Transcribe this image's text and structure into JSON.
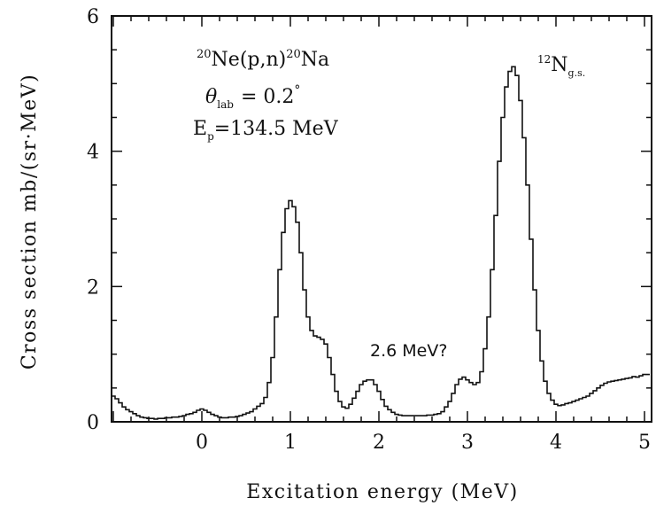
{
  "chart_data": {
    "type": "line",
    "step": true,
    "xlabel": "Excitation energy (MeV)",
    "ylabel": "Cross section mb/(sr·MeV)",
    "xlim": [
      -1.02,
      5.08
    ],
    "ylim": [
      0,
      6
    ],
    "xticks": [
      "0",
      "1",
      "2",
      "3",
      "4",
      "5"
    ],
    "yticks": [
      "0",
      "2",
      "4",
      "6"
    ],
    "xtick_values": [
      0,
      1,
      2,
      3,
      4,
      5
    ],
    "ytick_values": [
      0,
      2,
      4,
      6
    ],
    "grid": false,
    "annotations": {
      "reaction_sup_a": "20",
      "reaction_a": "Ne(p,n)",
      "reaction_sup_b": "20",
      "reaction_b": "Na",
      "theta": "θ",
      "theta_sub": "lab",
      "theta_val": "= 0.2",
      "theta_deg": "°",
      "ep": "E",
      "ep_sub": "p",
      "ep_val": "=134.5  MeV",
      "peak_label": "2.6  MeV?",
      "gs_sup": "12",
      "gs": "N",
      "gs_sub": "g.s."
    },
    "x": [
      -1.0,
      -0.96,
      -0.92,
      -0.88,
      -0.84,
      -0.8,
      -0.76,
      -0.72,
      -0.68,
      -0.64,
      -0.6,
      -0.56,
      -0.52,
      -0.48,
      -0.44,
      -0.4,
      -0.36,
      -0.32,
      -0.28,
      -0.24,
      -0.2,
      -0.16,
      -0.12,
      -0.08,
      -0.04,
      0.0,
      0.04,
      0.08,
      0.12,
      0.16,
      0.2,
      0.24,
      0.28,
      0.32,
      0.36,
      0.4,
      0.44,
      0.48,
      0.52,
      0.56,
      0.6,
      0.64,
      0.68,
      0.72,
      0.76,
      0.8,
      0.84,
      0.88,
      0.92,
      0.96,
      1.0,
      1.04,
      1.08,
      1.12,
      1.16,
      1.2,
      1.24,
      1.28,
      1.32,
      1.36,
      1.4,
      1.44,
      1.48,
      1.52,
      1.56,
      1.6,
      1.64,
      1.68,
      1.72,
      1.76,
      1.8,
      1.84,
      1.88,
      1.92,
      1.96,
      2.0,
      2.04,
      2.08,
      2.12,
      2.16,
      2.2,
      2.24,
      2.28,
      2.32,
      2.36,
      2.4,
      2.44,
      2.48,
      2.52,
      2.56,
      2.6,
      2.64,
      2.68,
      2.72,
      2.76,
      2.8,
      2.84,
      2.88,
      2.92,
      2.96,
      3.0,
      3.04,
      3.08,
      3.12,
      3.16,
      3.2,
      3.24,
      3.28,
      3.32,
      3.36,
      3.4,
      3.44,
      3.48,
      3.52,
      3.56,
      3.6,
      3.64,
      3.68,
      3.72,
      3.76,
      3.8,
      3.84,
      3.88,
      3.92,
      3.96,
      4.0,
      4.04,
      4.08,
      4.12,
      4.16,
      4.2,
      4.24,
      4.28,
      4.32,
      4.36,
      4.4,
      4.44,
      4.48,
      4.52,
      4.56,
      4.6,
      4.64,
      4.68,
      4.72,
      4.76,
      4.8,
      4.84,
      4.88,
      4.92,
      4.96,
      5.0,
      5.04
    ],
    "y": [
      0.38,
      0.34,
      0.28,
      0.22,
      0.18,
      0.15,
      0.12,
      0.09,
      0.07,
      0.06,
      0.05,
      0.05,
      0.04,
      0.05,
      0.05,
      0.06,
      0.06,
      0.07,
      0.07,
      0.08,
      0.09,
      0.11,
      0.12,
      0.14,
      0.17,
      0.19,
      0.17,
      0.14,
      0.11,
      0.09,
      0.07,
      0.06,
      0.06,
      0.07,
      0.07,
      0.08,
      0.09,
      0.11,
      0.13,
      0.15,
      0.19,
      0.23,
      0.27,
      0.36,
      0.58,
      0.95,
      1.55,
      2.25,
      2.8,
      3.15,
      3.27,
      3.18,
      2.95,
      2.5,
      1.95,
      1.55,
      1.35,
      1.27,
      1.25,
      1.22,
      1.15,
      0.95,
      0.7,
      0.45,
      0.3,
      0.22,
      0.2,
      0.26,
      0.35,
      0.45,
      0.55,
      0.6,
      0.62,
      0.62,
      0.55,
      0.45,
      0.33,
      0.23,
      0.18,
      0.14,
      0.11,
      0.1,
      0.09,
      0.09,
      0.09,
      0.09,
      0.09,
      0.09,
      0.09,
      0.1,
      0.1,
      0.11,
      0.12,
      0.15,
      0.22,
      0.3,
      0.42,
      0.55,
      0.63,
      0.66,
      0.62,
      0.58,
      0.55,
      0.58,
      0.74,
      1.08,
      1.55,
      2.25,
      3.05,
      3.85,
      4.5,
      4.95,
      5.18,
      5.25,
      5.12,
      4.75,
      4.2,
      3.5,
      2.7,
      1.95,
      1.35,
      0.9,
      0.6,
      0.42,
      0.32,
      0.26,
      0.24,
      0.25,
      0.27,
      0.28,
      0.3,
      0.32,
      0.34,
      0.36,
      0.38,
      0.42,
      0.46,
      0.5,
      0.54,
      0.57,
      0.59,
      0.6,
      0.61,
      0.62,
      0.63,
      0.64,
      0.65,
      0.67,
      0.66,
      0.68,
      0.7,
      0.7
    ],
    "color": "#111111"
  }
}
